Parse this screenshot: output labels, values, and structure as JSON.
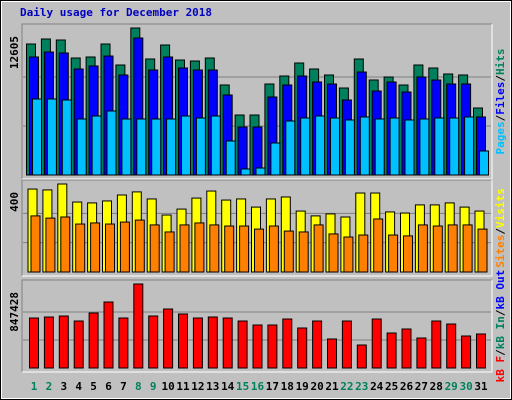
{
  "chart_data": [
    {
      "type": "bar",
      "title": "Daily usage for December 2018",
      "ylim": [
        0,
        12605
      ],
      "yticks": [
        12605
      ],
      "legend_separator": "/",
      "series": [
        {
          "name": "Hits",
          "color": "#00805c",
          "values": [
            11233,
            11662,
            11576,
            10033,
            10119,
            11233,
            9433,
            12605,
            9947,
            11148,
            9861,
            9776,
            10033,
            7718,
            5145,
            5145,
            7803,
            8489,
            9604,
            9090,
            8575,
            7460,
            9947,
            8146,
            8404,
            7718,
            9433,
            9175,
            8661,
            8575,
            5745
          ]
        },
        {
          "name": "Files",
          "color": "#0000ff",
          "values": [
            10119,
            10547,
            10462,
            9090,
            9347,
            10204,
            8575,
            11748,
            9004,
            10119,
            9175,
            9004,
            9004,
            6860,
            4116,
            4116,
            6689,
            7718,
            8489,
            7975,
            7803,
            6431,
            8832,
            7203,
            7975,
            7117,
            8404,
            8146,
            7803,
            7803,
            4974
          ]
        },
        {
          "name": "Pages",
          "color": "#00c0ff",
          "values": [
            6517,
            6517,
            6431,
            4802,
            5059,
            5488,
            4802,
            4802,
            4802,
            4802,
            5059,
            4888,
            5059,
            2916,
            515,
            600,
            2744,
            4631,
            4888,
            5059,
            4888,
            4716,
            4974,
            4802,
            4888,
            4716,
            4802,
            4888,
            4888,
            4974,
            2058
          ]
        }
      ]
    },
    {
      "type": "bar",
      "ylim": [
        0,
        400
      ],
      "yticks": [
        400
      ],
      "series": [
        {
          "name": "Visits",
          "color": "#ffff00",
          "values": [
            377,
            373,
            400,
            318,
            314,
            323,
            350,
            364,
            332,
            259,
            286,
            336,
            368,
            327,
            332,
            295,
            332,
            341,
            277,
            255,
            264,
            250,
            359,
            359,
            273,
            268,
            305,
            305,
            314,
            295,
            277
          ]
        },
        {
          "name": "Sites",
          "color": "#ff8000",
          "values": [
            255,
            245,
            250,
            218,
            223,
            218,
            227,
            236,
            214,
            182,
            214,
            223,
            214,
            209,
            209,
            195,
            209,
            186,
            182,
            214,
            173,
            159,
            168,
            241,
            168,
            164,
            214,
            209,
            214,
            214,
            195
          ]
        }
      ]
    },
    {
      "type": "bar",
      "ylim": [
        0,
        847428
      ],
      "yticks": [
        847428
      ],
      "categories": [
        "1",
        "2",
        "3",
        "4",
        "5",
        "6",
        "7",
        "8",
        "9",
        "10",
        "11",
        "12",
        "13",
        "14",
        "15",
        "16",
        "17",
        "18",
        "19",
        "20",
        "21",
        "22",
        "23",
        "24",
        "25",
        "26",
        "27",
        "28",
        "29",
        "30",
        "31"
      ],
      "category_colors": [
        "#00805c",
        "#00805c",
        "#000000",
        "#000000",
        "#000000",
        "#000000",
        "#000000",
        "#00805c",
        "#00805c",
        "#000000",
        "#000000",
        "#000000",
        "#000000",
        "#000000",
        "#00805c",
        "#00805c",
        "#000000",
        "#000000",
        "#000000",
        "#000000",
        "#000000",
        "#00805c",
        "#00805c",
        "#000000",
        "#000000",
        "#000000",
        "#000000",
        "#000000",
        "#00805c",
        "#00805c",
        "#000000"
      ],
      "series": [
        {
          "name": "kB F",
          "color": "#ff0000",
          "values": [
            504400,
            514500,
            524600,
            474100,
            554800,
            665800,
            504400,
            847428,
            524600,
            595200,
            544800,
            504400,
            514500,
            504400,
            474100,
            433800,
            433800,
            494300,
            403500,
            474100,
            292600,
            474100,
            232000,
            494300,
            353100,
            393400,
            302600,
            474100,
            443900,
            322800,
            343000
          ]
        }
      ],
      "legend_extra": [
        {
          "name": "kB In",
          "color": "#00805c"
        },
        {
          "name": "kB Out",
          "color": "#0000ff"
        }
      ]
    }
  ]
}
